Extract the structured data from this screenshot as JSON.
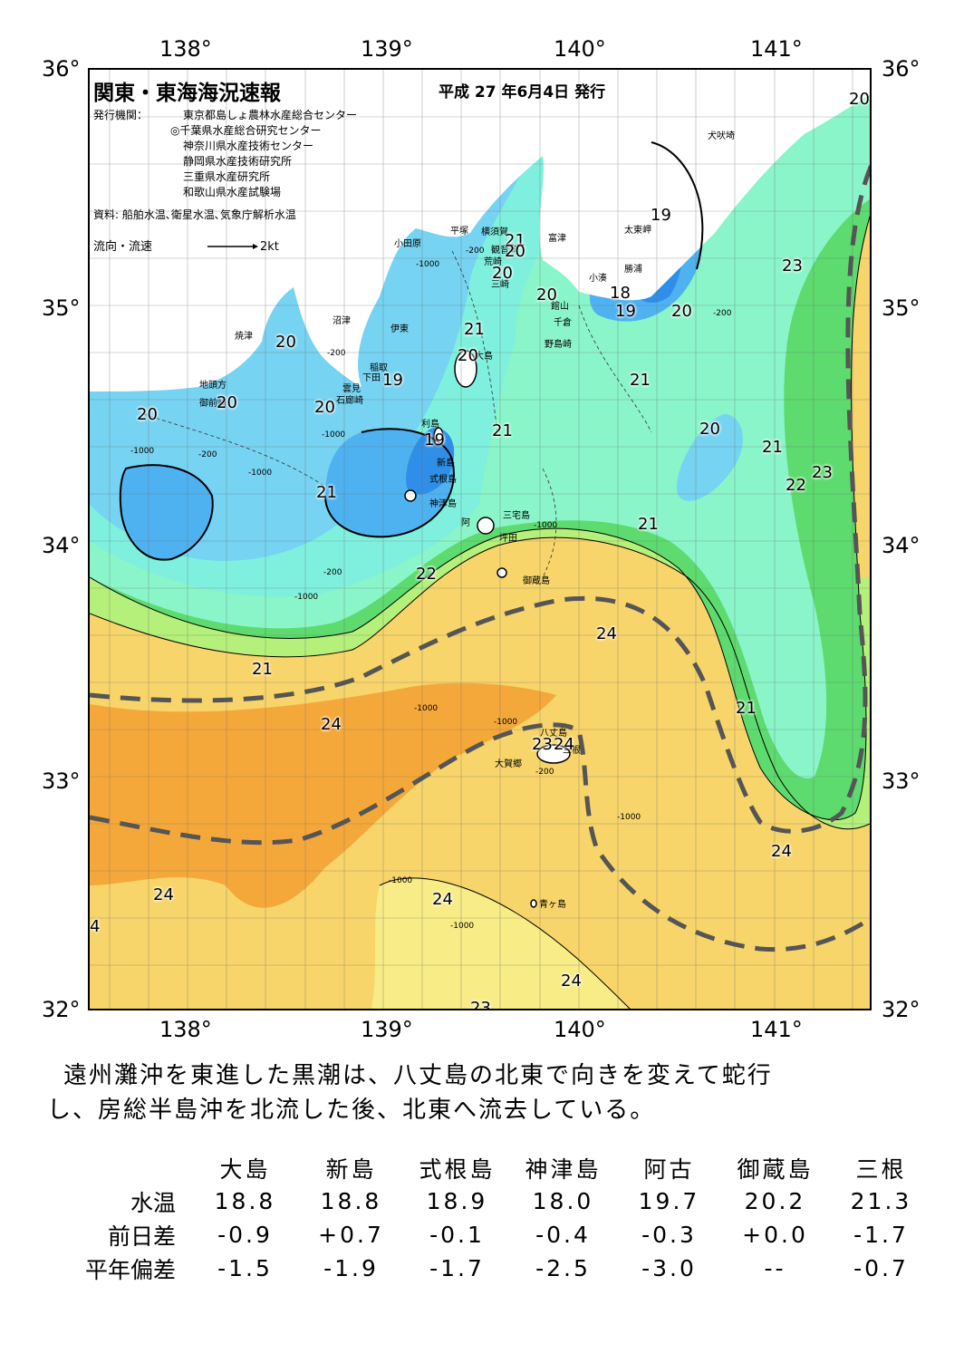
{
  "axes": {
    "lon_labels": [
      "138°",
      "139°",
      "140°",
      "141°"
    ],
    "lat_labels": [
      "36°",
      "35°",
      "34°",
      "33°",
      "32°"
    ]
  },
  "header": {
    "title": "関東・東海海況速報",
    "date": "平成 27 年6月4日 発行",
    "issuer_label": "発行機関：",
    "issuers": [
      "東京都島しょ農林水産総合センター",
      "◎千葉県水産総合研究センター",
      "神奈川県水産技術センター",
      "静岡県水産技術研究所",
      "三重県水産研究所",
      "和歌山県水産試験場"
    ],
    "sources": "資料: 船舶水温､衛星水温､気象庁解析水温",
    "current_legend": "流向・流速",
    "current_scale": "2kt"
  },
  "places": {
    "inubozaki": "犬吠埼",
    "taitomisaki": "太東岬",
    "katsuura": "勝浦",
    "kominato": "小湊",
    "futtsu": "富津",
    "kannonzaki": "観音崎",
    "yokosuka": "横須賀",
    "araizaki": "荒崎",
    "misaki": "三崎",
    "hiratsuka": "平塚",
    "odawara": "小田原",
    "tateyama": "館山",
    "chikura": "千倉",
    "nojimazaki": "野島崎",
    "numazu": "沼津",
    "ito": "伊東",
    "inatori": "稲取",
    "shimoda": "下田",
    "mera": "雲見",
    "irozaki": "石廊崎",
    "yaizu": "焼津",
    "jitokata": "地頭方",
    "omaezaki": "御前崎",
    "oshima": "大島",
    "toshima": "利島",
    "niijima": "新島",
    "shikinejima": "式根島",
    "kozushima": "神津島",
    "miyakejima": "三宅島",
    "ako": "阿",
    "tsubota": "坪田",
    "mikurajima": "御蔵島",
    "hachijojima": "八丈島",
    "okago": "大賀郷",
    "mitsune": "三根",
    "aogashima": "青ヶ島"
  },
  "isotherms": [
    "20",
    "19",
    "21",
    "20",
    "20",
    "20",
    "20",
    "18",
    "19",
    "20",
    "20",
    "21",
    "20",
    "19",
    "20",
    "19",
    "20",
    "21",
    "21",
    "21",
    "20",
    "21",
    "22",
    "23",
    "23",
    "21",
    "22",
    "24",
    "21",
    "24",
    "21",
    "24",
    "23",
    "24",
    "24",
    "24",
    "24",
    "4",
    "24",
    "23"
  ],
  "depth_labels": [
    "-200",
    "-1000",
    "-200",
    "-1000",
    "-200",
    "-1000",
    "-1000",
    "-200",
    "-1000",
    "-200",
    "-1000",
    "-1000",
    "-1000",
    "-200",
    "-1000",
    "-1000",
    "-1000",
    "-1000"
  ],
  "summary": [
    "遠州灘沖を東進した黒潮は、八丈島の北東で向きを変えて蛇行",
    "し、房総半島沖を北流した後、北東へ流去している。"
  ],
  "table": {
    "headers": [
      "大島",
      "新島",
      "式根島",
      "神津島",
      "阿古",
      "御蔵島",
      "三根"
    ],
    "rows": [
      {
        "label": "水温",
        "values": [
          "18.8",
          "18.8",
          "18.9",
          "18.0",
          "19.7",
          "20.2",
          "21.3"
        ]
      },
      {
        "label": "前日差",
        "values": [
          "-0.9",
          "+0.7",
          "-0.1",
          "-0.4",
          "-0.3",
          "+0.0",
          "-1.7"
        ]
      },
      {
        "label": "平年偏差",
        "values": [
          "-1.5",
          "-1.9",
          "-1.7",
          "-2.5",
          "-3.0",
          "--",
          "-0.7"
        ]
      }
    ]
  },
  "colors": {
    "deep_blue": "#2f8fe8",
    "blue": "#4fb2f0",
    "light_blue": "#76d3f2",
    "cyan": "#7ff0dd",
    "aqua": "#8af5c9",
    "green": "#5ddb6e",
    "light_green": "#b5f07a",
    "yellow": "#f6f07a",
    "pale_orange": "#f7d56a",
    "orange": "#f5a83a",
    "land": "#ffffff",
    "kuroshio_axis": "#555555"
  }
}
